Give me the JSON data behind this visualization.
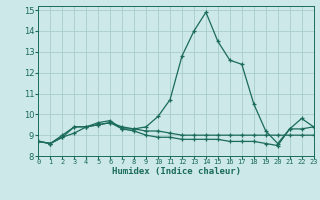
{
  "xlabel": "Humidex (Indice chaleur)",
  "background_color": "#cce8e8",
  "grid_color": "#aacccc",
  "line_color": "#1a6b5a",
  "x_values": [
    0,
    1,
    2,
    3,
    4,
    5,
    6,
    7,
    8,
    9,
    10,
    11,
    12,
    13,
    14,
    15,
    16,
    17,
    18,
    19,
    20,
    21,
    22,
    23
  ],
  "line1": [
    8.7,
    8.6,
    8.9,
    9.4,
    9.4,
    9.6,
    9.7,
    9.3,
    9.3,
    9.4,
    9.9,
    10.7,
    12.8,
    14.0,
    14.9,
    13.5,
    12.6,
    12.4,
    10.5,
    9.2,
    8.6,
    9.3,
    9.8,
    9.4
  ],
  "line2": [
    8.7,
    8.6,
    8.9,
    9.1,
    9.4,
    9.5,
    9.6,
    9.4,
    9.3,
    9.2,
    9.2,
    9.1,
    9.0,
    9.0,
    9.0,
    9.0,
    9.0,
    9.0,
    9.0,
    9.0,
    9.0,
    9.0,
    9.0,
    9.0
  ],
  "line3": [
    8.7,
    8.6,
    9.0,
    9.4,
    9.4,
    9.5,
    9.6,
    9.3,
    9.2,
    9.0,
    8.9,
    8.9,
    8.8,
    8.8,
    8.8,
    8.8,
    8.7,
    8.7,
    8.7,
    8.6,
    8.5,
    9.3,
    9.3,
    9.4
  ],
  "ylim": [
    8.0,
    15.2
  ],
  "xlim": [
    0,
    23
  ],
  "yticks": [
    8,
    9,
    10,
    11,
    12,
    13,
    14,
    15
  ],
  "xtick_labels": [
    "0",
    "1",
    "2",
    "3",
    "4",
    "5",
    "6",
    "7",
    "8",
    "9",
    "10",
    "11",
    "12",
    "13",
    "14",
    "15",
    "16",
    "17",
    "18",
    "19",
    "20",
    "21",
    "22",
    "23"
  ]
}
